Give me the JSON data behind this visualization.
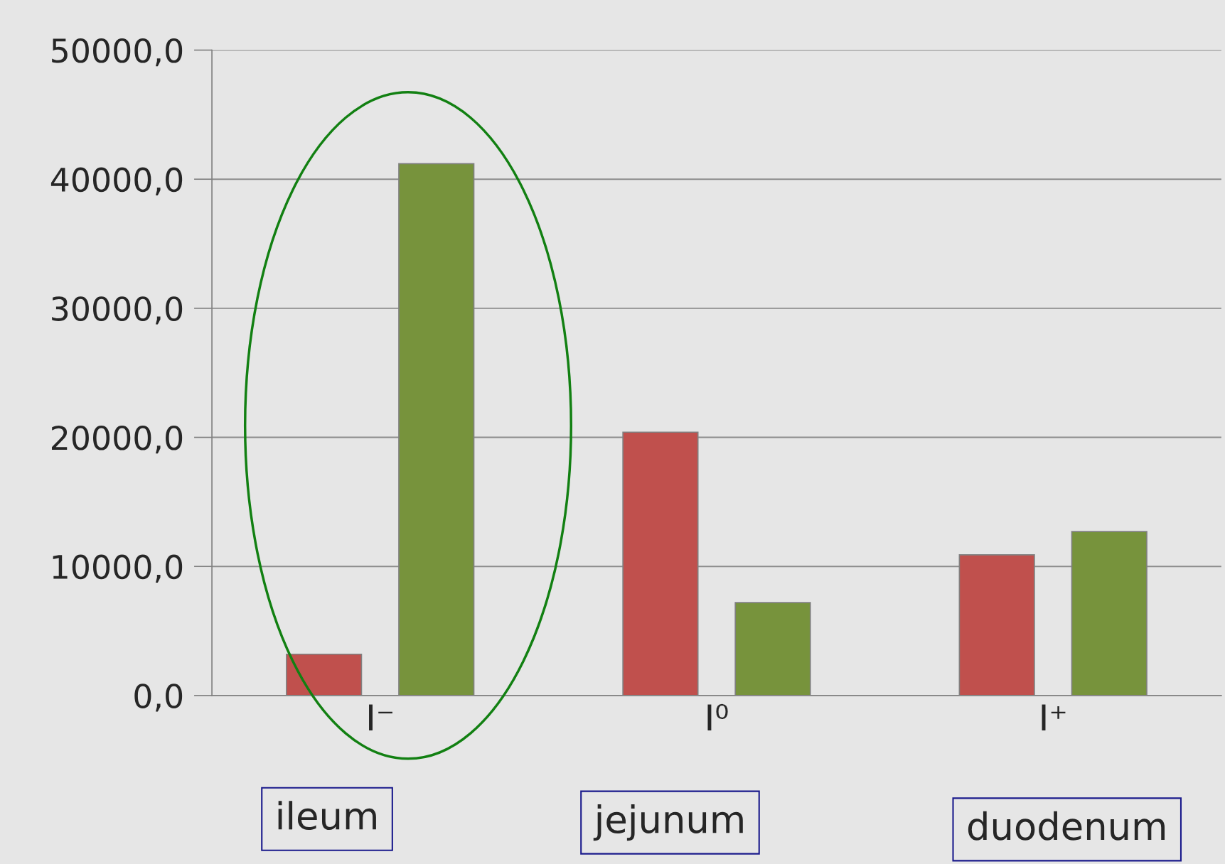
{
  "chart_data": {
    "type": "bar",
    "categories": [
      "I⁻",
      "I⁰",
      "I⁺"
    ],
    "series": [
      {
        "color": "#c0504d",
        "values": [
          3200,
          20400,
          10900
        ]
      },
      {
        "color": "#77933c",
        "values": [
          41200,
          7200,
          12700
        ]
      }
    ],
    "ylim": [
      0,
      50000
    ],
    "yticks": [
      {
        "value": 0,
        "label": "0,0"
      },
      {
        "value": 10000,
        "label": "10000,0"
      },
      {
        "value": 20000,
        "label": "20000,0"
      },
      {
        "value": 30000,
        "label": "30000,0"
      },
      {
        "value": 40000,
        "label": "40000,0"
      },
      {
        "value": 50000,
        "label": "50000,0"
      }
    ],
    "grid": "y",
    "legend": false,
    "annotations": [
      "ileum",
      "jejunum",
      "duodenum"
    ]
  }
}
